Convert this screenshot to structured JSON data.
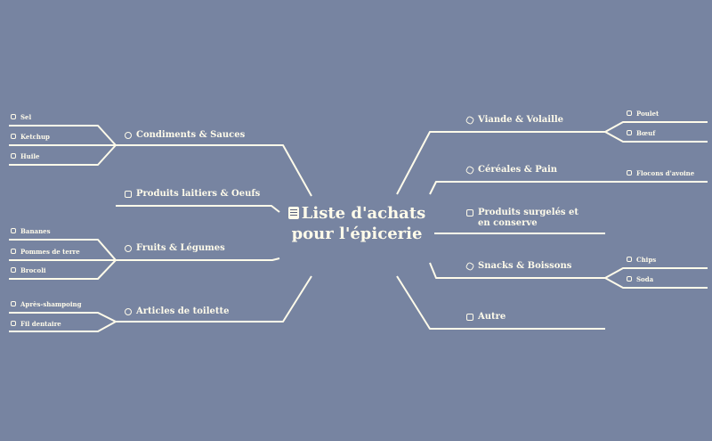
{
  "center": {
    "title": "Liste d'achats pour l'épicerie",
    "icon": "clipboard-list-icon"
  },
  "colors": {
    "background": "#7784a1",
    "ink": "#fffbea"
  },
  "branches": {
    "condiments": {
      "label": "Condiments & Sauces",
      "items": [
        "Sel",
        "Ketchup",
        "Huile"
      ]
    },
    "laitiers": {
      "label": "Produits laitiers & Oeufs",
      "items": []
    },
    "fruits": {
      "label": "Fruits & Légumes",
      "items": [
        "Bananes",
        "Pommes de terre",
        "Brocoli"
      ]
    },
    "toilette": {
      "label": "Articles de toilette",
      "items": [
        "Après-shampoing",
        "Fil dentaire"
      ]
    },
    "viande": {
      "label": "Viande & Volaille",
      "items": [
        "Poulet",
        "Bœuf"
      ]
    },
    "cereales": {
      "label": "Céréales & Pain",
      "items": [
        "Flocons d'avoine"
      ]
    },
    "surgeles": {
      "label": "Produits surgelés et en conserve",
      "items": []
    },
    "snacks": {
      "label": "Snacks & Boissons",
      "items": [
        "Chips",
        "Soda"
      ]
    },
    "autre": {
      "label": "Autre",
      "items": []
    }
  }
}
